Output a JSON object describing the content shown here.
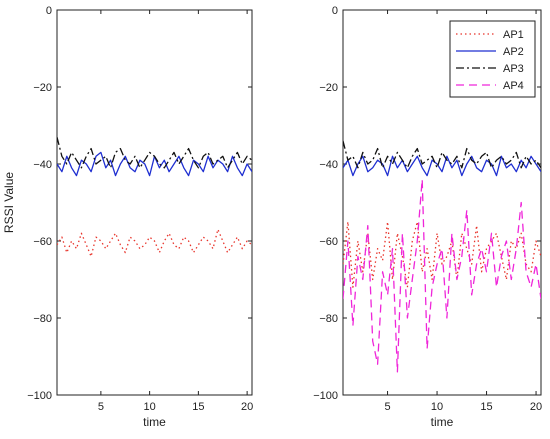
{
  "chart_data": [
    {
      "type": "line",
      "xlabel": "time",
      "ylabel": "RSSI Value",
      "xlim": [
        0.5,
        20.5
      ],
      "ylim": [
        -100,
        0
      ],
      "xticks": [
        5,
        10,
        15,
        20
      ],
      "yticks": [
        0,
        -20,
        -40,
        -60,
        -80,
        -100
      ],
      "xtick_labels": [
        "5",
        "10",
        "15",
        "20"
      ],
      "ytick_labels": [
        "0",
        "−20",
        "−40",
        "−60",
        "−80",
        "−100"
      ],
      "grid": false,
      "x": [
        0.5,
        1.0,
        1.5,
        2.0,
        2.5,
        3.0,
        3.5,
        4.0,
        4.5,
        5.0,
        5.5,
        6.0,
        6.5,
        7.0,
        7.5,
        8.0,
        8.5,
        9.0,
        9.5,
        10.0,
        10.5,
        11.0,
        11.5,
        12.0,
        12.5,
        13.0,
        13.5,
        14.0,
        14.5,
        15.0,
        15.5,
        16.0,
        16.5,
        17.0,
        17.5,
        18.0,
        18.5,
        19.0,
        19.5,
        20.0,
        20.5
      ],
      "series": [
        {
          "name": "AP1",
          "color": "#e8332a",
          "dash": "dotted",
          "values": [
            -61,
            -59,
            -63,
            -60,
            -62,
            -58,
            -61,
            -64,
            -59,
            -60,
            -62,
            -60,
            -58,
            -61,
            -63,
            -59,
            -60,
            -62,
            -61,
            -59,
            -60,
            -63,
            -60,
            -58,
            -61,
            -62,
            -59,
            -60,
            -63,
            -61,
            -59,
            -60,
            -62,
            -57,
            -60,
            -63,
            -61,
            -59,
            -62,
            -60,
            -61
          ]
        },
        {
          "name": "AP2",
          "color": "#1f2fd1",
          "dash": "solid",
          "values": [
            -40,
            -42,
            -38,
            -41,
            -43,
            -39,
            -40,
            -42,
            -38,
            -37,
            -41,
            -39,
            -43,
            -40,
            -38,
            -41,
            -42,
            -39,
            -40,
            -43,
            -38,
            -41,
            -39,
            -42,
            -40,
            -38,
            -41,
            -43,
            -39,
            -40,
            -42,
            -38,
            -41,
            -39,
            -40,
            -42,
            -38,
            -41,
            -43,
            -40,
            -42
          ]
        },
        {
          "name": "AP3",
          "color": "#111111",
          "dash": "dashdot",
          "values": [
            -33,
            -38,
            -40,
            -37,
            -39,
            -41,
            -38,
            -36,
            -40,
            -39,
            -38,
            -41,
            -37,
            -36,
            -39,
            -40,
            -38,
            -41,
            -39,
            -37,
            -38,
            -40,
            -41,
            -39,
            -37,
            -40,
            -38,
            -36,
            -39,
            -41,
            -38,
            -37,
            -40,
            -39,
            -38,
            -41,
            -39,
            -37,
            -40,
            -38,
            -39
          ]
        }
      ]
    },
    {
      "type": "line",
      "xlabel": "time",
      "ylabel": "",
      "xlim": [
        0.5,
        20.5
      ],
      "ylim": [
        -100,
        0
      ],
      "xticks": [
        5,
        10,
        15,
        20
      ],
      "yticks": [
        0,
        -20,
        -40,
        -60,
        -80,
        -100
      ],
      "xtick_labels": [
        "5",
        "10",
        "15",
        "20"
      ],
      "ytick_labels": [
        "0",
        "−20",
        "−40",
        "−60",
        "−80",
        "−100"
      ],
      "grid": false,
      "legend": {
        "placement": "top-right",
        "entries": [
          "AP1",
          "AP2",
          "AP3",
          "AP4"
        ]
      },
      "x": [
        0.5,
        1.0,
        1.5,
        2.0,
        2.5,
        3.0,
        3.5,
        4.0,
        4.5,
        5.0,
        5.5,
        6.0,
        6.5,
        7.0,
        7.5,
        8.0,
        8.5,
        9.0,
        9.5,
        10.0,
        10.5,
        11.0,
        11.5,
        12.0,
        12.5,
        13.0,
        13.5,
        14.0,
        14.5,
        15.0,
        15.5,
        16.0,
        16.5,
        17.0,
        17.5,
        18.0,
        18.5,
        19.0,
        19.5,
        20.0,
        20.5
      ],
      "series": [
        {
          "name": "AP1",
          "color": "#e8332a",
          "dash": "dotted",
          "values": [
            -66,
            -55,
            -72,
            -60,
            -68,
            -58,
            -70,
            -62,
            -65,
            -55,
            -70,
            -58,
            -64,
            -72,
            -60,
            -55,
            -68,
            -62,
            -70,
            -58,
            -66,
            -64,
            -60,
            -70,
            -58,
            -62,
            -66,
            -56,
            -68,
            -62,
            -60,
            -58,
            -64,
            -70,
            -60,
            -62,
            -58,
            -66,
            -68,
            -60,
            -64
          ]
        },
        {
          "name": "AP2",
          "color": "#1f2fd1",
          "dash": "solid",
          "values": [
            -41,
            -39,
            -43,
            -40,
            -38,
            -42,
            -41,
            -39,
            -40,
            -43,
            -38,
            -41,
            -39,
            -42,
            -40,
            -38,
            -41,
            -43,
            -39,
            -40,
            -42,
            -38,
            -41,
            -39,
            -43,
            -40,
            -38,
            -41,
            -42,
            -39,
            -40,
            -43,
            -38,
            -41,
            -40,
            -42,
            -39,
            -41,
            -38,
            -40,
            -42
          ]
        },
        {
          "name": "AP3",
          "color": "#111111",
          "dash": "dashdot",
          "values": [
            -34,
            -39,
            -38,
            -41,
            -37,
            -40,
            -39,
            -36,
            -41,
            -38,
            -40,
            -37,
            -39,
            -41,
            -38,
            -36,
            -40,
            -39,
            -38,
            -41,
            -37,
            -39,
            -40,
            -38,
            -41,
            -36,
            -39,
            -40,
            -38,
            -37,
            -41,
            -39,
            -38,
            -40,
            -39,
            -37,
            -41,
            -38,
            -40,
            -39,
            -41
          ]
        },
        {
          "name": "AP4",
          "color": "#ef26d9",
          "dash": "dashed",
          "values": [
            -75,
            -60,
            -82,
            -64,
            -70,
            -56,
            -86,
            -92,
            -68,
            -74,
            -62,
            -94,
            -58,
            -80,
            -70,
            -60,
            -44,
            -88,
            -72,
            -66,
            -62,
            -80,
            -58,
            -70,
            -64,
            -52,
            -74,
            -66,
            -62,
            -68,
            -58,
            -72,
            -64,
            -60,
            -70,
            -62,
            -50,
            -68,
            -72,
            -66,
            -75
          ]
        }
      ]
    }
  ]
}
